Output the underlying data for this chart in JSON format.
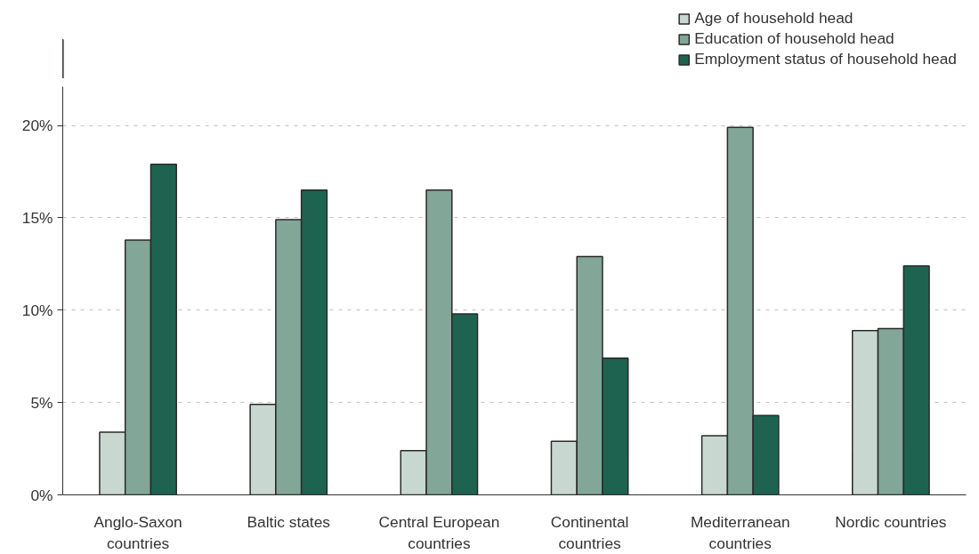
{
  "chart_data": {
    "type": "bar",
    "categories": [
      "Anglo-Saxon\ncountries",
      "Baltic states",
      "Central European\ncountries",
      "Continental\ncountries",
      "Mediterranean\ncountries",
      "Nordic countries"
    ],
    "series": [
      {
        "name": "Age of household head",
        "color": "#c8d8d0",
        "values": [
          3.4,
          4.9,
          2.4,
          2.9,
          3.2,
          8.9
        ]
      },
      {
        "name": "Education of household head",
        "color": "#82a698",
        "values": [
          13.8,
          14.9,
          16.5,
          12.9,
          19.9,
          9.0
        ]
      },
      {
        "name": "Employment status of household head",
        "color": "#1e6350",
        "values": [
          17.9,
          16.5,
          9.8,
          7.4,
          4.3,
          12.4
        ]
      }
    ],
    "ylim": [
      0,
      22.1
    ],
    "yticks": [
      {
        "value": 0,
        "label": "0%"
      },
      {
        "value": 5,
        "label": "5%"
      },
      {
        "value": 10,
        "label": "10%"
      },
      {
        "value": 15,
        "label": "15%"
      },
      {
        "value": 20,
        "label": "20%"
      }
    ],
    "grid": "y",
    "legend": "top right"
  }
}
